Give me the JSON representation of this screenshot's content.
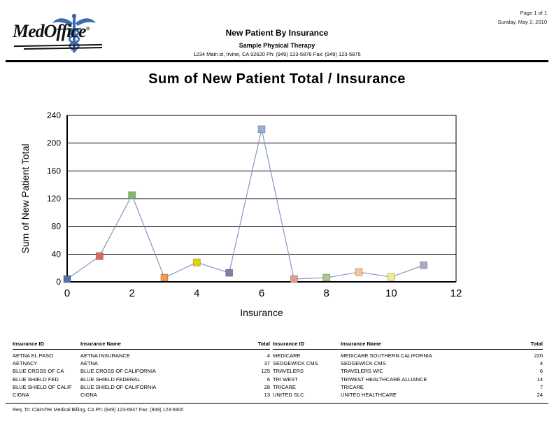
{
  "page": {
    "page_info": "Page 1 of 1",
    "date": "Sunday, May 2, 2010",
    "footer": "Req. To: ClaimTek Medical Billing, CA Ph: (949) 123-6947 Fax: (949) 123-5900"
  },
  "header": {
    "logo_text": "MedOffice",
    "logo_reg": "®",
    "report_title": "New Patient By Insurance",
    "practice_name": "Sample Physical Therapy",
    "practice_address": "1234 Main st, Irvine, CA 92620 Ph: (949) 123-5876 Fax: (949) 123-5875"
  },
  "chart_data": {
    "type": "line",
    "title": "Sum of New Patient Total / Insurance",
    "xlabel": "Insurance",
    "ylabel": "Sum of New Patient Total",
    "x": [
      0,
      1,
      2,
      3,
      4,
      5,
      6,
      7,
      8,
      9,
      10,
      11
    ],
    "values": [
      4,
      37,
      125,
      6,
      28,
      13,
      220,
      4,
      6,
      14,
      7,
      24
    ],
    "xlim": [
      0,
      12
    ],
    "ylim": [
      0,
      240
    ],
    "x_ticks": [
      0,
      2,
      4,
      6,
      8,
      10,
      12
    ],
    "y_ticks": [
      0,
      40,
      80,
      120,
      160,
      200,
      240
    ],
    "grid": "horizontal",
    "legend": "none",
    "line_color": "#8497bd",
    "marker_colors": [
      "#5571a7",
      "#da6a5f",
      "#7fba67",
      "#f49c4c",
      "#e2d200",
      "#8c7aa5",
      "#94b2d8",
      "#e09d99",
      "#a9c98d",
      "#fbc390",
      "#f0ee8f",
      "#b4a5c8"
    ]
  },
  "table": {
    "headers": [
      "Insurance ID",
      "Insurance Name",
      "Total"
    ],
    "left_rows": [
      {
        "id": "AETNA EL PASO",
        "name": "AETNA INSURANCE",
        "total": "4"
      },
      {
        "id": "AETNACY",
        "name": "AETNA",
        "total": "37"
      },
      {
        "id": "BLUE CROSS OF CA",
        "name": "BLUE CROSS OF CALIFORNIA",
        "total": "125"
      },
      {
        "id": "BLUE SHIELD FED",
        "name": "BLUE SHIELD FEDERAL",
        "total": "6"
      },
      {
        "id": "BLUE SHIELD OF CALIF",
        "name": "BLUE SHIELD OF CALIFORNIA",
        "total": "28"
      },
      {
        "id": "CIGNA",
        "name": "CIGNA",
        "total": "13"
      }
    ],
    "right_rows": [
      {
        "id": "MEDICARE",
        "name": "MEDICARE SOUTHERN CALIFORNIA",
        "total": "220"
      },
      {
        "id": "SEDGEWICK CMS",
        "name": "SEDGEWICK CMS",
        "total": "4"
      },
      {
        "id": "TRAVELERS",
        "name": "TRAVELERS W/C",
        "total": "6"
      },
      {
        "id": "TRI WEST",
        "name": "TRIWEST HEALTHCARE ALLIANCE",
        "total": "14"
      },
      {
        "id": "TRICARE",
        "name": "TRICARE",
        "total": "7"
      },
      {
        "id": "UNITED SLC",
        "name": "UNITED HEALTHCARE",
        "total": "24"
      }
    ]
  }
}
